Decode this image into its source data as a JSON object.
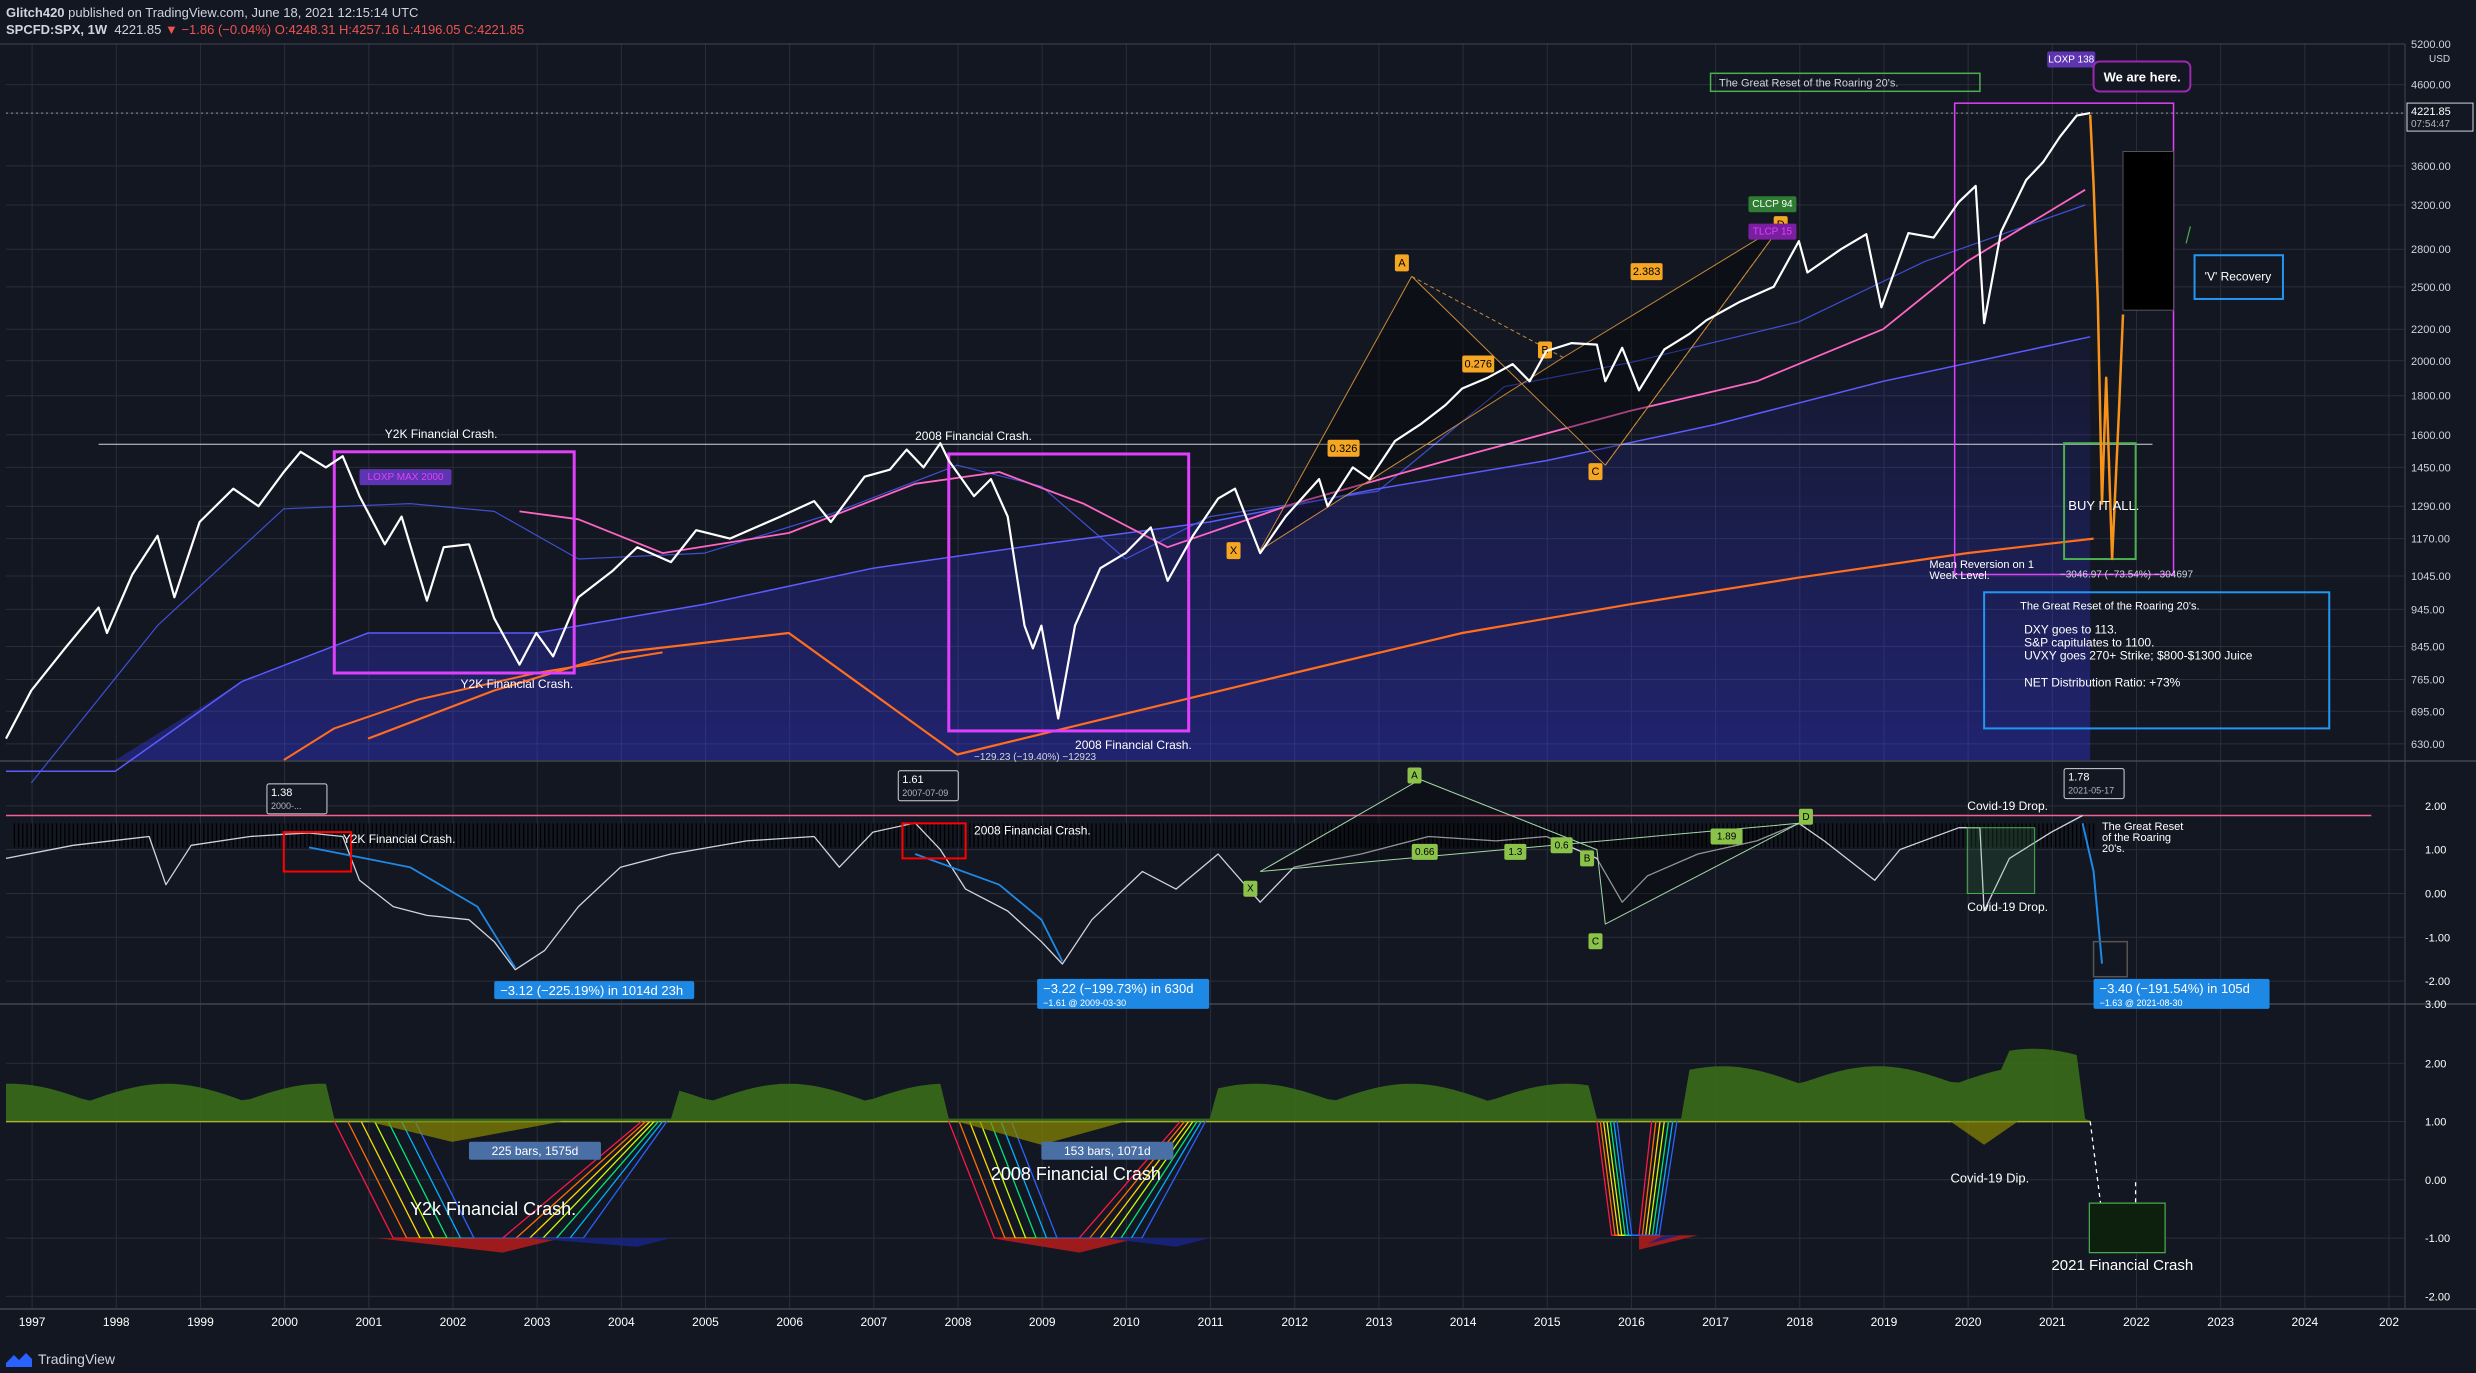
{
  "header": {
    "line1_user": "Glitch420",
    "line1_rest": " published on TradingView.com, June 18, 2021 12:15:14 UTC",
    "symbol": "SPCFD:SPX, 1W",
    "price": "4221.85",
    "change": "▼ −1.86 (−0.04%)",
    "ohlc": "O:4248.31 H:4257.16 L:4196.05 C:4221.85"
  },
  "price_axis": {
    "labels": [
      "5200.00",
      "4600.00",
      "4221.85",
      "3600.00",
      "3200.00",
      "2800.00",
      "2500.00",
      "2200.00",
      "2000.00",
      "1800.00",
      "1600.00",
      "1450.00",
      "1290.00",
      "1170.00",
      "1045.00",
      "945.00",
      "845.00",
      "765.00",
      "695.00",
      "630.00"
    ],
    "currency": "USD",
    "last_price": "4221.85",
    "countdown": "07:54:47"
  },
  "osc1_axis": [
    "2.00",
    "1.00",
    "0.00",
    "-1.00",
    "-2.00",
    "3.00"
  ],
  "osc2_axis": [
    "2.00",
    "1.00",
    "0.00",
    "-1.00",
    "-2.00"
  ],
  "time_axis": [
    "1997",
    "1998",
    "1999",
    "2000",
    "2001",
    "2002",
    "2003",
    "2004",
    "2005",
    "2006",
    "2007",
    "2008",
    "2009",
    "2010",
    "2011",
    "2012",
    "2013",
    "2014",
    "2015",
    "2016",
    "2017",
    "2018",
    "2019",
    "2020",
    "2021",
    "2022",
    "2023",
    "2024",
    "202"
  ],
  "annotations": {
    "y2k_top": "Y2K Financial Crash.",
    "y2k_bottom": "Y2K Financial Crash.",
    "loxp_max": "LOXP MAX 2000",
    "crash2008_top": "2008 Financial Crash.",
    "crash2008_bottom": "2008 Financial Crash.",
    "crash2008_measure": "−129.23 (−19.40%) −12923",
    "great_reset_header": "The Great Reset of the Roaring 20's.",
    "loxp138": "LOXP 138",
    "we_are_here": "We are here.",
    "v_recovery": "'V' Recovery",
    "buy_it_all": "BUY IT ALL.",
    "mean_reversion_1": "Mean Reversion on 1",
    "mean_reversion_2": "Week Level.",
    "reset_measure": "−3046.97 (−73.54%) −304697",
    "clcp94": "CLCP 94",
    "tlcp15": "TLCP 15",
    "fib_2383": "2.383",
    "fib_0276": "0.276",
    "fib_0326": "0.326",
    "pt_a": "A",
    "pt_b": "B",
    "pt_c": "C",
    "pt_d": "D",
    "pt_x": "X",
    "info_title": "The Great Reset of the Roaring 20's.",
    "info_line1": "DXY goes to 113.",
    "info_line2": "S&P capitulates to 1100.",
    "info_line3": "UVXY goes 270+ Strike; $800-$1300 Juice",
    "info_line4": "NET Distribution Ratio:  +73%"
  },
  "osc1_annotations": {
    "y2k": "Y2K Financial Crash.",
    "crash2008": "2008 Financial Crash.",
    "covid_top": "Covid-19 Drop.",
    "covid_bottom": "Covid-19 Drop.",
    "reset": [
      "The Great Reset",
      "of the Roaring",
      "20's."
    ],
    "tip1_val": "1.38",
    "tip1_date": "2000-...",
    "tip2_val": "1.61",
    "tip2_date": "2007-07-09",
    "tip3_val": "1.78",
    "tip3_date": "2021-05-17",
    "m1": "−3.12 (−225.19%) in 1014d 23h",
    "m2": "−3.22 (−199.73%) in 630d",
    "m2_sub": "−1.61 @ 2009-03-30",
    "m3": "−3.40 (−191.54%) in 105d",
    "m3_sub": "−1.63 @ 2021-08-30",
    "fib_066": "0.66",
    "fib_13": "1.3",
    "fib_06": "0.6",
    "fib_189": "1.89"
  },
  "osc2_annotations": {
    "bars1": "225 bars, 1575d",
    "bars2": "153 bars, 1071d",
    "y2k": "Y2k Financial Crash.",
    "crash2008": "2008 Financial Crash",
    "covid": "Covid-19 Dip.",
    "crash2021": "2021 Financial Crash"
  },
  "colors": {
    "background": "#131722",
    "price_line": "#ffffff",
    "magenta_box": "#e040fb",
    "orange_ma": "#ff6d1f",
    "blue_ma": "#5b5bff",
    "pink_ma": "#ff66c4",
    "green_box": "#4caf50",
    "info_box": "#2196f3",
    "measure_bg": "#1e88e5"
  },
  "chart_data": {
    "type": "line",
    "title": "SPCFD:SPX, 1W",
    "x_unit": "year",
    "y_scale": "log",
    "ylim": [
      600,
      5200
    ],
    "xlim": [
      1996.7,
      2025.2
    ],
    "series": [
      {
        "name": "SPX",
        "points": [
          [
            1996.7,
            640
          ],
          [
            1997.0,
            740
          ],
          [
            1997.4,
            840
          ],
          [
            1997.8,
            950
          ],
          [
            1997.9,
            880
          ],
          [
            1998.2,
            1050
          ],
          [
            1998.5,
            1180
          ],
          [
            1998.7,
            980
          ],
          [
            1999.0,
            1230
          ],
          [
            1999.4,
            1360
          ],
          [
            1999.7,
            1290
          ],
          [
            2000.0,
            1430
          ],
          [
            2000.2,
            1520
          ],
          [
            2000.5,
            1450
          ],
          [
            2000.7,
            1500
          ],
          [
            2000.9,
            1330
          ],
          [
            2001.2,
            1150
          ],
          [
            2001.4,
            1250
          ],
          [
            2001.7,
            970
          ],
          [
            2001.9,
            1140
          ],
          [
            2002.2,
            1150
          ],
          [
            2002.5,
            920
          ],
          [
            2002.8,
            800
          ],
          [
            2003.0,
            880
          ],
          [
            2003.2,
            820
          ],
          [
            2003.5,
            980
          ],
          [
            2003.9,
            1060
          ],
          [
            2004.2,
            1140
          ],
          [
            2004.6,
            1090
          ],
          [
            2004.9,
            1200
          ],
          [
            2005.3,
            1170
          ],
          [
            2005.9,
            1250
          ],
          [
            2006.3,
            1310
          ],
          [
            2006.5,
            1230
          ],
          [
            2006.9,
            1410
          ],
          [
            2007.2,
            1440
          ],
          [
            2007.4,
            1530
          ],
          [
            2007.6,
            1450
          ],
          [
            2007.8,
            1560
          ],
          [
            2007.9,
            1480
          ],
          [
            2008.2,
            1330
          ],
          [
            2008.4,
            1400
          ],
          [
            2008.6,
            1250
          ],
          [
            2008.8,
            900
          ],
          [
            2008.9,
            840
          ],
          [
            2009.0,
            900
          ],
          [
            2009.2,
            680
          ],
          [
            2009.4,
            900
          ],
          [
            2009.7,
            1070
          ],
          [
            2010.0,
            1120
          ],
          [
            2010.3,
            1210
          ],
          [
            2010.5,
            1030
          ],
          [
            2010.8,
            1180
          ],
          [
            2011.1,
            1320
          ],
          [
            2011.3,
            1360
          ],
          [
            2011.6,
            1120
          ],
          [
            2011.9,
            1250
          ],
          [
            2012.3,
            1400
          ],
          [
            2012.4,
            1290
          ],
          [
            2012.7,
            1450
          ],
          [
            2012.9,
            1400
          ],
          [
            2013.2,
            1570
          ],
          [
            2013.5,
            1650
          ],
          [
            2013.8,
            1750
          ],
          [
            2014.0,
            1840
          ],
          [
            2014.3,
            1900
          ],
          [
            2014.6,
            1980
          ],
          [
            2014.8,
            1880
          ],
          [
            2015.0,
            2060
          ],
          [
            2015.3,
            2110
          ],
          [
            2015.6,
            2100
          ],
          [
            2015.7,
            1880
          ],
          [
            2015.9,
            2080
          ],
          [
            2016.1,
            1830
          ],
          [
            2016.4,
            2070
          ],
          [
            2016.7,
            2170
          ],
          [
            2016.9,
            2260
          ],
          [
            2017.3,
            2390
          ],
          [
            2017.7,
            2500
          ],
          [
            2018.0,
            2870
          ],
          [
            2018.1,
            2610
          ],
          [
            2018.5,
            2800
          ],
          [
            2018.8,
            2930
          ],
          [
            2018.98,
            2350
          ],
          [
            2019.3,
            2940
          ],
          [
            2019.6,
            2900
          ],
          [
            2019.9,
            3230
          ],
          [
            2020.1,
            3390
          ],
          [
            2020.2,
            2240
          ],
          [
            2020.4,
            2950
          ],
          [
            2020.7,
            3450
          ],
          [
            2020.9,
            3640
          ],
          [
            2021.1,
            3930
          ],
          [
            2021.3,
            4190
          ],
          [
            2021.46,
            4221.85
          ]
        ]
      },
      {
        "name": "projection",
        "points": [
          [
            2021.46,
            4200
          ],
          [
            2021.5,
            3400
          ],
          [
            2021.55,
            2400
          ],
          [
            2021.6,
            1300
          ],
          [
            2021.65,
            1900
          ],
          [
            2021.72,
            1100
          ],
          [
            2021.8,
            1700
          ],
          [
            2021.85,
            2300
          ]
        ]
      }
    ],
    "osc1": {
      "ylim": [
        -2.5,
        3.0
      ],
      "points": [
        [
          1996.7,
          0.8
        ],
        [
          1997.5,
          1.1
        ],
        [
          1998.4,
          1.3
        ],
        [
          1998.6,
          0.2
        ],
        [
          1998.9,
          1.1
        ],
        [
          1999.6,
          1.3
        ],
        [
          2000.0,
          1.35
        ],
        [
          2000.3,
          1.38
        ],
        [
          2000.7,
          1.3
        ],
        [
          2000.9,
          0.3
        ],
        [
          2001.3,
          -0.3
        ],
        [
          2001.7,
          -0.5
        ],
        [
          2002.2,
          -0.6
        ],
        [
          2002.5,
          -1.1
        ],
        [
          2002.75,
          -1.74
        ],
        [
          2003.1,
          -1.3
        ],
        [
          2003.5,
          -0.3
        ],
        [
          2004.0,
          0.6
        ],
        [
          2004.6,
          0.9
        ],
        [
          2005.5,
          1.2
        ],
        [
          2006.3,
          1.3
        ],
        [
          2006.6,
          0.6
        ],
        [
          2007.0,
          1.4
        ],
        [
          2007.5,
          1.61
        ],
        [
          2007.8,
          1.0
        ],
        [
          2008.1,
          0.1
        ],
        [
          2008.6,
          -0.4
        ],
        [
          2009.0,
          -1.1
        ],
        [
          2009.25,
          -1.61
        ],
        [
          2009.6,
          -0.6
        ],
        [
          2010.2,
          0.5
        ],
        [
          2010.6,
          0.1
        ],
        [
          2011.1,
          0.9
        ],
        [
          2011.6,
          -0.2
        ],
        [
          2012.0,
          0.6
        ],
        [
          2012.8,
          0.9
        ],
        [
          2013.6,
          1.3
        ],
        [
          2014.4,
          1.2
        ],
        [
          2015.0,
          1.3
        ],
        [
          2015.6,
          0.8
        ],
        [
          2015.9,
          -0.2
        ],
        [
          2016.2,
          0.4
        ],
        [
          2016.8,
          0.9
        ],
        [
          2017.5,
          1.2
        ],
        [
          2018.0,
          1.6
        ],
        [
          2018.3,
          1.2
        ],
        [
          2018.9,
          0.3
        ],
        [
          2019.2,
          1.0
        ],
        [
          2019.9,
          1.5
        ],
        [
          2020.15,
          1.5
        ],
        [
          2020.2,
          -0.4
        ],
        [
          2020.5,
          0.8
        ],
        [
          2021.0,
          1.4
        ],
        [
          2021.37,
          1.78
        ]
      ]
    },
    "osc2": {
      "ylim": [
        -2.2,
        3.0
      ],
      "zero_level": 1.0,
      "events": [
        {
          "label": "Y2k Financial Crash.",
          "start": 2000.6,
          "end": 2004.6,
          "depth": -1.0
        },
        {
          "label": "2008 Financial Crash",
          "start": 2007.9,
          "end": 2011.0,
          "depth": -1.0
        },
        {
          "label": "Covid-19 Dip.",
          "start": 2015.6,
          "end": 2016.6,
          "depth": -0.95
        },
        {
          "label": "2021 Financial Crash",
          "start": 2021.45,
          "end": 2022.0,
          "depth": -1.2
        }
      ]
    }
  }
}
